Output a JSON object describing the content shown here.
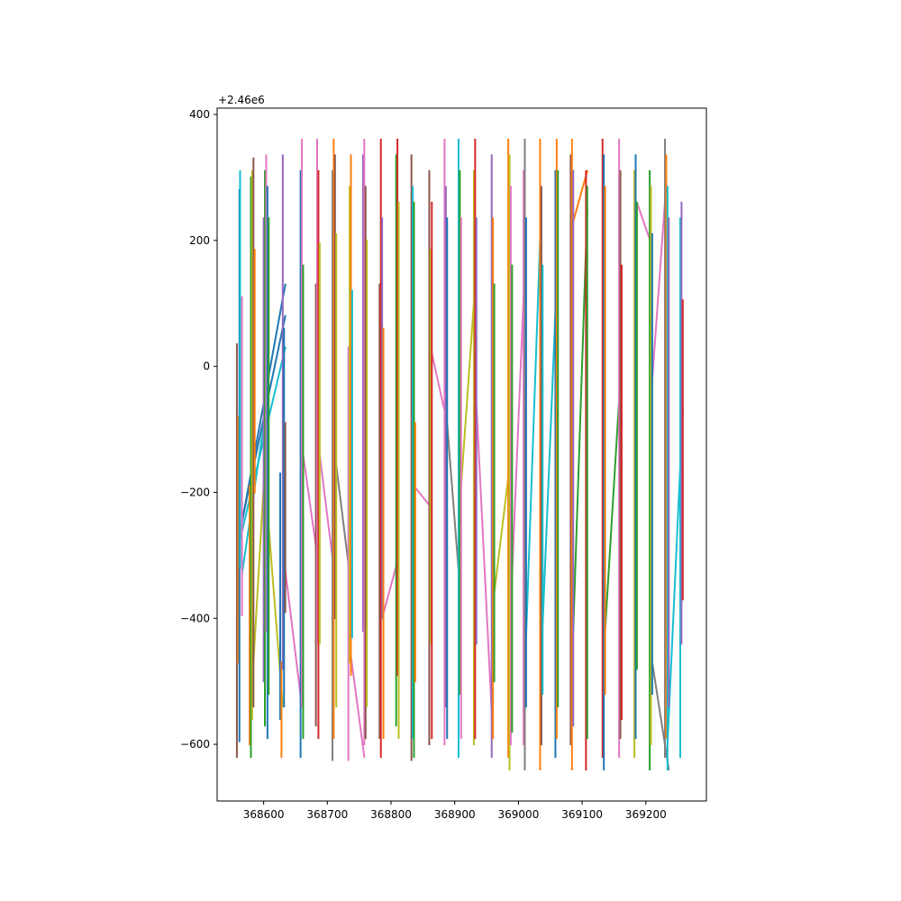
{
  "figure": {
    "background": "#ffffff"
  },
  "chart_data": {
    "type": "line",
    "title": "",
    "xlabel": "",
    "ylabel": "",
    "y_offset_text": "+2.46e6",
    "xlim": [
      368527,
      369295
    ],
    "ylim": [
      -690,
      410
    ],
    "grid": false,
    "legend": "none",
    "x_ticks": [
      368600,
      368700,
      368800,
      368900,
      369000,
      369100,
      369200
    ],
    "x_tick_labels": [
      "368600",
      "368700",
      "368800",
      "368900",
      "369000",
      "369100",
      "369200"
    ],
    "y_ticks": [
      -600,
      -400,
      -200,
      0,
      200,
      400
    ],
    "y_tick_labels": [
      "−600",
      "−400",
      "−200",
      "0",
      "200",
      "400"
    ],
    "series_colors": [
      "#1f77b4",
      "#ff7f0e",
      "#2ca02c",
      "#d62728",
      "#9467bd",
      "#8c564b",
      "#e377c2",
      "#7f7f7f",
      "#bcbd22",
      "#17becf"
    ],
    "vertical_segments": [
      {
        "x": 368558,
        "y": [
          -620,
          35
        ],
        "color": "#8c564b"
      },
      {
        "x": 368560,
        "y": [
          -470,
          -80
        ],
        "color": "#ff7f0e"
      },
      {
        "x": 368562,
        "y": [
          -595,
          280
        ],
        "color": "#1f77b4"
      },
      {
        "x": 368563,
        "y": [
          -320,
          310
        ],
        "color": "#17becf"
      },
      {
        "x": 368566,
        "y": [
          -395,
          110
        ],
        "color": "#e377c2"
      },
      {
        "x": 368578,
        "y": [
          -600,
          -190
        ],
        "color": "#ff7f0e"
      },
      {
        "x": 368580,
        "y": [
          -620,
          300
        ],
        "color": "#2ca02c"
      },
      {
        "x": 368582,
        "y": [
          -560,
          310
        ],
        "color": "#bcbd22"
      },
      {
        "x": 368584,
        "y": [
          -540,
          330
        ],
        "color": "#8c564b"
      },
      {
        "x": 368586,
        "y": [
          -200,
          185
        ],
        "color": "#ff7f0e"
      },
      {
        "x": 368600,
        "y": [
          -500,
          235
        ],
        "color": "#9467bd"
      },
      {
        "x": 368602,
        "y": [
          -570,
          310
        ],
        "color": "#2ca02c"
      },
      {
        "x": 368604,
        "y": [
          -420,
          335
        ],
        "color": "#e377c2"
      },
      {
        "x": 368606,
        "y": [
          -590,
          285
        ],
        "color": "#1f77b4"
      },
      {
        "x": 368608,
        "y": [
          -520,
          235
        ],
        "color": "#2ca02c"
      },
      {
        "x": 368626,
        "y": [
          -560,
          -170
        ],
        "color": "#1f77b4"
      },
      {
        "x": 368628,
        "y": [
          -620,
          -470
        ],
        "color": "#ff7f0e"
      },
      {
        "x": 368630,
        "y": [
          -480,
          335
        ],
        "color": "#9467bd"
      },
      {
        "x": 368632,
        "y": [
          -540,
          60
        ],
        "color": "#1f77b4"
      },
      {
        "x": 368634,
        "y": [
          -390,
          -90
        ],
        "color": "#8c564b"
      },
      {
        "x": 368658,
        "y": [
          -620,
          310
        ],
        "color": "#1f77b4"
      },
      {
        "x": 368660,
        "y": [
          -540,
          360
        ],
        "color": "#e377c2"
      },
      {
        "x": 368662,
        "y": [
          -590,
          160
        ],
        "color": "#2ca02c"
      },
      {
        "x": 368682,
        "y": [
          -570,
          130
        ],
        "color": "#8c564b"
      },
      {
        "x": 368684,
        "y": [
          -440,
          360
        ],
        "color": "#e377c2"
      },
      {
        "x": 368686,
        "y": [
          -590,
          310
        ],
        "color": "#d62728"
      },
      {
        "x": 368688,
        "y": [
          -440,
          195
        ],
        "color": "#bcbd22"
      },
      {
        "x": 368708,
        "y": [
          -625,
          310
        ],
        "color": "#7f7f7f"
      },
      {
        "x": 368710,
        "y": [
          -590,
          360
        ],
        "color": "#ff7f0e"
      },
      {
        "x": 368712,
        "y": [
          -400,
          335
        ],
        "color": "#8c564b"
      },
      {
        "x": 368714,
        "y": [
          -540,
          210
        ],
        "color": "#bcbd22"
      },
      {
        "x": 368733,
        "y": [
          -625,
          30
        ],
        "color": "#e377c2"
      },
      {
        "x": 368735,
        "y": [
          -470,
          285
        ],
        "color": "#bcbd22"
      },
      {
        "x": 368737,
        "y": [
          -490,
          335
        ],
        "color": "#ff7f0e"
      },
      {
        "x": 368739,
        "y": [
          -430,
          120
        ],
        "color": "#17becf"
      },
      {
        "x": 368756,
        "y": [
          -420,
          335
        ],
        "color": "#9467bd"
      },
      {
        "x": 368758,
        "y": [
          -600,
          360
        ],
        "color": "#e377c2"
      },
      {
        "x": 368760,
        "y": [
          -590,
          285
        ],
        "color": "#8c564b"
      },
      {
        "x": 368762,
        "y": [
          -540,
          200
        ],
        "color": "#bcbd22"
      },
      {
        "x": 368782,
        "y": [
          -590,
          130
        ],
        "color": "#8c564b"
      },
      {
        "x": 368784,
        "y": [
          -620,
          360
        ],
        "color": "#d62728"
      },
      {
        "x": 368786,
        "y": [
          -400,
          235
        ],
        "color": "#9467bd"
      },
      {
        "x": 368788,
        "y": [
          -590,
          60
        ],
        "color": "#ff7f0e"
      },
      {
        "x": 368808,
        "y": [
          -570,
          335
        ],
        "color": "#2ca02c"
      },
      {
        "x": 368810,
        "y": [
          -490,
          360
        ],
        "color": "#d62728"
      },
      {
        "x": 368812,
        "y": [
          -590,
          260
        ],
        "color": "#bcbd22"
      },
      {
        "x": 368832,
        "y": [
          -625,
          335
        ],
        "color": "#8c564b"
      },
      {
        "x": 368834,
        "y": [
          -590,
          285
        ],
        "color": "#17becf"
      },
      {
        "x": 368836,
        "y": [
          -620,
          260
        ],
        "color": "#2ca02c"
      },
      {
        "x": 368838,
        "y": [
          -500,
          -90
        ],
        "color": "#ff7f0e"
      },
      {
        "x": 368860,
        "y": [
          -600,
          310
        ],
        "color": "#8c564b"
      },
      {
        "x": 368862,
        "y": [
          -440,
          185
        ],
        "color": "#bcbd22"
      },
      {
        "x": 368864,
        "y": [
          -590,
          260
        ],
        "color": "#d62728"
      },
      {
        "x": 368884,
        "y": [
          -600,
          360
        ],
        "color": "#e377c2"
      },
      {
        "x": 368886,
        "y": [
          -540,
          285
        ],
        "color": "#9467bd"
      },
      {
        "x": 368888,
        "y": [
          -590,
          235
        ],
        "color": "#1f77b4"
      },
      {
        "x": 368906,
        "y": [
          -620,
          360
        ],
        "color": "#17becf"
      },
      {
        "x": 368908,
        "y": [
          -520,
          310
        ],
        "color": "#2ca02c"
      },
      {
        "x": 368910,
        "y": [
          -590,
          235
        ],
        "color": "#e377c2"
      },
      {
        "x": 368930,
        "y": [
          -600,
          310
        ],
        "color": "#bcbd22"
      },
      {
        "x": 368932,
        "y": [
          -590,
          360
        ],
        "color": "#d62728"
      },
      {
        "x": 368934,
        "y": [
          -440,
          235
        ],
        "color": "#9467bd"
      },
      {
        "x": 368958,
        "y": [
          -620,
          335
        ],
        "color": "#9467bd"
      },
      {
        "x": 368960,
        "y": [
          -590,
          235
        ],
        "color": "#ff7f0e"
      },
      {
        "x": 368962,
        "y": [
          -500,
          130
        ],
        "color": "#2ca02c"
      },
      {
        "x": 368984,
        "y": [
          -620,
          360
        ],
        "color": "#ff7f0e"
      },
      {
        "x": 368986,
        "y": [
          -640,
          335
        ],
        "color": "#bcbd22"
      },
      {
        "x": 368988,
        "y": [
          -600,
          285
        ],
        "color": "#e377c2"
      },
      {
        "x": 368990,
        "y": [
          -580,
          160
        ],
        "color": "#2ca02c"
      },
      {
        "x": 369008,
        "y": [
          -600,
          310
        ],
        "color": "#e377c2"
      },
      {
        "x": 369010,
        "y": [
          -640,
          360
        ],
        "color": "#7f7f7f"
      },
      {
        "x": 369012,
        "y": [
          -540,
          235
        ],
        "color": "#1f77b4"
      },
      {
        "x": 369034,
        "y": [
          -640,
          360
        ],
        "color": "#ff7f0e"
      },
      {
        "x": 369036,
        "y": [
          -600,
          285
        ],
        "color": "#8c564b"
      },
      {
        "x": 369038,
        "y": [
          -520,
          160
        ],
        "color": "#17becf"
      },
      {
        "x": 369058,
        "y": [
          -620,
          310
        ],
        "color": "#1f77b4"
      },
      {
        "x": 369060,
        "y": [
          -590,
          360
        ],
        "color": "#ff7f0e"
      },
      {
        "x": 369062,
        "y": [
          -540,
          310
        ],
        "color": "#2ca02c"
      },
      {
        "x": 369082,
        "y": [
          -600,
          335
        ],
        "color": "#8c564b"
      },
      {
        "x": 369084,
        "y": [
          -640,
          360
        ],
        "color": "#ff7f0e"
      },
      {
        "x": 369086,
        "y": [
          -570,
          310
        ],
        "color": "#9467bd"
      },
      {
        "x": 369106,
        "y": [
          -640,
          310
        ],
        "color": "#d62728"
      },
      {
        "x": 369108,
        "y": [
          -590,
          285
        ],
        "color": "#2ca02c"
      },
      {
        "x": 369132,
        "y": [
          -620,
          360
        ],
        "color": "#d62728"
      },
      {
        "x": 369134,
        "y": [
          -640,
          335
        ],
        "color": "#1f77b4"
      },
      {
        "x": 369136,
        "y": [
          -520,
          285
        ],
        "color": "#ff7f0e"
      },
      {
        "x": 369158,
        "y": [
          -620,
          360
        ],
        "color": "#e377c2"
      },
      {
        "x": 369160,
        "y": [
          -590,
          310
        ],
        "color": "#8c564b"
      },
      {
        "x": 369162,
        "y": [
          -560,
          160
        ],
        "color": "#d62728"
      },
      {
        "x": 369182,
        "y": [
          -620,
          310
        ],
        "color": "#bcbd22"
      },
      {
        "x": 369184,
        "y": [
          -590,
          335
        ],
        "color": "#1f77b4"
      },
      {
        "x": 369186,
        "y": [
          -480,
          260
        ],
        "color": "#2ca02c"
      },
      {
        "x": 369206,
        "y": [
          -640,
          310
        ],
        "color": "#2ca02c"
      },
      {
        "x": 369208,
        "y": [
          -600,
          285
        ],
        "color": "#bcbd22"
      },
      {
        "x": 369210,
        "y": [
          -520,
          210
        ],
        "color": "#1f77b4"
      },
      {
        "x": 369230,
        "y": [
          -620,
          360
        ],
        "color": "#7f7f7f"
      },
      {
        "x": 369232,
        "y": [
          -590,
          335
        ],
        "color": "#ff7f0e"
      },
      {
        "x": 369234,
        "y": [
          -640,
          285
        ],
        "color": "#17becf"
      },
      {
        "x": 369236,
        "y": [
          -540,
          235
        ],
        "color": "#9467bd"
      },
      {
        "x": 369254,
        "y": [
          -620,
          235
        ],
        "color": "#17becf"
      },
      {
        "x": 369256,
        "y": [
          -440,
          260
        ],
        "color": "#9467bd"
      },
      {
        "x": 369258,
        "y": [
          -370,
          105
        ],
        "color": "#d62728"
      }
    ],
    "connector_lines": [
      {
        "x": [
          368562,
          368634
        ],
        "y": [
          -270,
          130
        ],
        "color": "#1f77b4"
      },
      {
        "x": [
          368562,
          368634
        ],
        "y": [
          -265,
          80
        ],
        "color": "#1f77b4"
      },
      {
        "x": [
          368563,
          368634
        ],
        "y": [
          -275,
          30
        ],
        "color": "#17becf"
      },
      {
        "x": [
          368566,
          368602
        ],
        "y": [
          -330,
          -80
        ],
        "color": "#17becf"
      },
      {
        "x": [
          368580,
          368604
        ],
        "y": [
          -540,
          -120
        ],
        "color": "#bcbd22"
      },
      {
        "x": [
          368606,
          368630
        ],
        "y": [
          -230,
          -540
        ],
        "color": "#bcbd22"
      },
      {
        "x": [
          368630,
          368660
        ],
        "y": [
          -290,
          -540
        ],
        "color": "#e377c2"
      },
      {
        "x": [
          368662,
          368684
        ],
        "y": [
          -140,
          -300
        ],
        "color": "#e377c2"
      },
      {
        "x": [
          368688,
          368710
        ],
        "y": [
          -140,
          -320
        ],
        "color": "#e377c2"
      },
      {
        "x": [
          368712,
          368735
        ],
        "y": [
          -140,
          -330
        ],
        "color": "#7f7f7f"
      },
      {
        "x": [
          368737,
          368758
        ],
        "y": [
          -460,
          -620
        ],
        "color": "#e377c2"
      },
      {
        "x": [
          368786,
          368810
        ],
        "y": [
          -400,
          -310
        ],
        "color": "#e377c2"
      },
      {
        "x": [
          368836,
          368860
        ],
        "y": [
          -190,
          -220
        ],
        "color": "#e377c2"
      },
      {
        "x": [
          368862,
          368886
        ],
        "y": [
          30,
          -80
        ],
        "color": "#e377c2"
      },
      {
        "x": [
          368888,
          368908
        ],
        "y": [
          -90,
          -350
        ],
        "color": "#7f7f7f"
      },
      {
        "x": [
          368910,
          368932
        ],
        "y": [
          -190,
          130
        ],
        "color": "#bcbd22"
      },
      {
        "x": [
          368934,
          368960
        ],
        "y": [
          -60,
          -590
        ],
        "color": "#e377c2"
      },
      {
        "x": [
          368962,
          368986
        ],
        "y": [
          -360,
          -160
        ],
        "color": "#bcbd22"
      },
      {
        "x": [
          368988,
          369010
        ],
        "y": [
          -380,
          160
        ],
        "color": "#e377c2"
      },
      {
        "x": [
          369012,
          369036
        ],
        "y": [
          -430,
          260
        ],
        "color": "#17becf"
      },
      {
        "x": [
          369038,
          369060
        ],
        "y": [
          -410,
          135
        ],
        "color": "#17becf"
      },
      {
        "x": [
          369086,
          369108
        ],
        "y": [
          230,
          310
        ],
        "color": "#ff7f0e"
      },
      {
        "x": [
          369086,
          369108
        ],
        "y": [
          -420,
          250
        ],
        "color": "#2ca02c"
      },
      {
        "x": [
          369136,
          369160
        ],
        "y": [
          -420,
          -20
        ],
        "color": "#2ca02c"
      },
      {
        "x": [
          369186,
          369210
        ],
        "y": [
          260,
          190
        ],
        "color": "#e377c2"
      },
      {
        "x": [
          369208,
          369232
        ],
        "y": [
          -50,
          290
        ],
        "color": "#e377c2"
      },
      {
        "x": [
          369210,
          369236
        ],
        "y": [
          -470,
          -640
        ],
        "color": "#7f7f7f"
      },
      {
        "x": [
          369234,
          369258
        ],
        "y": [
          -600,
          -70
        ],
        "color": "#17becf"
      }
    ]
  }
}
